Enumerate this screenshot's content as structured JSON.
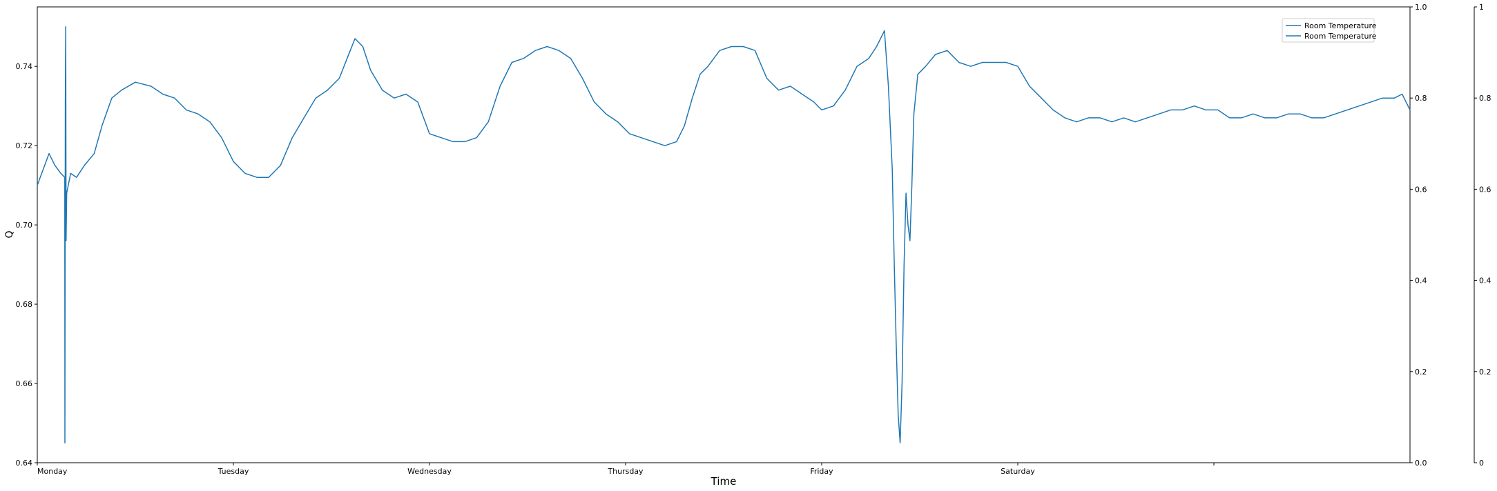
{
  "chart_data": {
    "type": "line",
    "title": "",
    "xlabel": "Time",
    "ylabel": "Q",
    "x_tick_labels": [
      "Monday",
      "Tuesday",
      "Wednesday",
      "Thursday",
      "Friday",
      "Saturday",
      ""
    ],
    "x_range_days": [
      0,
      7
    ],
    "ylim": [
      0.64,
      0.755
    ],
    "y_ticks": [
      0.64,
      0.66,
      0.68,
      0.7,
      0.72,
      0.74
    ],
    "secondary_axis_1": {
      "ylim": [
        0,
        1
      ],
      "ticks": [
        "0.0",
        "0.2",
        "0.4",
        "0.6",
        "0.8",
        "1.0"
      ]
    },
    "secondary_axis_2": {
      "ylim": [
        0,
        1
      ],
      "ticks": [
        "0",
        "0.2",
        "0.4",
        "0.6",
        "0.8",
        "1"
      ]
    },
    "legend": {
      "position": "top-right",
      "entries": [
        "Room Temperature",
        "Room Temperature"
      ]
    },
    "series": [
      {
        "name": "Room Temperature",
        "color": "#1f77b4",
        "points": [
          [
            0.0,
            0.71
          ],
          [
            0.03,
            0.714
          ],
          [
            0.06,
            0.718
          ],
          [
            0.09,
            0.715
          ],
          [
            0.12,
            0.713
          ],
          [
            0.14,
            0.712
          ],
          [
            0.141,
            0.645
          ],
          [
            0.143,
            0.731
          ],
          [
            0.145,
            0.75
          ],
          [
            0.147,
            0.696
          ],
          [
            0.15,
            0.708
          ],
          [
            0.17,
            0.713
          ],
          [
            0.2,
            0.712
          ],
          [
            0.24,
            0.715
          ],
          [
            0.29,
            0.718
          ],
          [
            0.33,
            0.725
          ],
          [
            0.38,
            0.732
          ],
          [
            0.43,
            0.734
          ],
          [
            0.5,
            0.736
          ],
          [
            0.58,
            0.735
          ],
          [
            0.64,
            0.733
          ],
          [
            0.7,
            0.732
          ],
          [
            0.76,
            0.729
          ],
          [
            0.82,
            0.728
          ],
          [
            0.88,
            0.726
          ],
          [
            0.94,
            0.722
          ],
          [
            1.0,
            0.716
          ],
          [
            1.06,
            0.713
          ],
          [
            1.12,
            0.712
          ],
          [
            1.18,
            0.712
          ],
          [
            1.24,
            0.715
          ],
          [
            1.3,
            0.722
          ],
          [
            1.36,
            0.727
          ],
          [
            1.42,
            0.732
          ],
          [
            1.48,
            0.734
          ],
          [
            1.54,
            0.737
          ],
          [
            1.58,
            0.742
          ],
          [
            1.62,
            0.747
          ],
          [
            1.66,
            0.745
          ],
          [
            1.7,
            0.739
          ],
          [
            1.76,
            0.734
          ],
          [
            1.82,
            0.732
          ],
          [
            1.88,
            0.733
          ],
          [
            1.94,
            0.731
          ],
          [
            2.0,
            0.723
          ],
          [
            2.06,
            0.722
          ],
          [
            2.12,
            0.721
          ],
          [
            2.18,
            0.721
          ],
          [
            2.24,
            0.722
          ],
          [
            2.3,
            0.726
          ],
          [
            2.36,
            0.735
          ],
          [
            2.42,
            0.741
          ],
          [
            2.48,
            0.742
          ],
          [
            2.54,
            0.744
          ],
          [
            2.6,
            0.745
          ],
          [
            2.66,
            0.744
          ],
          [
            2.72,
            0.742
          ],
          [
            2.78,
            0.737
          ],
          [
            2.84,
            0.731
          ],
          [
            2.9,
            0.728
          ],
          [
            2.96,
            0.726
          ],
          [
            3.02,
            0.723
          ],
          [
            3.08,
            0.722
          ],
          [
            3.14,
            0.721
          ],
          [
            3.2,
            0.72
          ],
          [
            3.26,
            0.721
          ],
          [
            3.3,
            0.725
          ],
          [
            3.34,
            0.732
          ],
          [
            3.38,
            0.738
          ],
          [
            3.42,
            0.74
          ],
          [
            3.48,
            0.744
          ],
          [
            3.54,
            0.745
          ],
          [
            3.6,
            0.745
          ],
          [
            3.66,
            0.744
          ],
          [
            3.72,
            0.737
          ],
          [
            3.78,
            0.734
          ],
          [
            3.84,
            0.735
          ],
          [
            3.9,
            0.733
          ],
          [
            3.96,
            0.731
          ],
          [
            4.0,
            0.729
          ],
          [
            4.06,
            0.73
          ],
          [
            4.12,
            0.734
          ],
          [
            4.18,
            0.74
          ],
          [
            4.24,
            0.742
          ],
          [
            4.28,
            0.745
          ],
          [
            4.32,
            0.749
          ],
          [
            4.34,
            0.735
          ],
          [
            4.36,
            0.714
          ],
          [
            4.37,
            0.69
          ],
          [
            4.38,
            0.67
          ],
          [
            4.39,
            0.652
          ],
          [
            4.4,
            0.645
          ],
          [
            4.41,
            0.66
          ],
          [
            4.42,
            0.69
          ],
          [
            4.43,
            0.708
          ],
          [
            4.44,
            0.7
          ],
          [
            4.45,
            0.696
          ],
          [
            4.46,
            0.71
          ],
          [
            4.47,
            0.728
          ],
          [
            4.49,
            0.738
          ],
          [
            4.53,
            0.74
          ],
          [
            4.58,
            0.743
          ],
          [
            4.64,
            0.744
          ],
          [
            4.7,
            0.741
          ],
          [
            4.76,
            0.74
          ],
          [
            4.82,
            0.741
          ],
          [
            4.88,
            0.741
          ],
          [
            4.94,
            0.741
          ],
          [
            5.0,
            0.74
          ],
          [
            5.06,
            0.735
          ],
          [
            5.12,
            0.732
          ],
          [
            5.18,
            0.729
          ],
          [
            5.24,
            0.727
          ],
          [
            5.3,
            0.726
          ],
          [
            5.36,
            0.727
          ],
          [
            5.42,
            0.727
          ],
          [
            5.48,
            0.726
          ],
          [
            5.54,
            0.727
          ],
          [
            5.6,
            0.726
          ],
          [
            5.66,
            0.727
          ],
          [
            5.72,
            0.728
          ],
          [
            5.78,
            0.729
          ],
          [
            5.84,
            0.729
          ],
          [
            5.9,
            0.73
          ],
          [
            5.96,
            0.729
          ],
          [
            6.02,
            0.729
          ],
          [
            6.08,
            0.727
          ],
          [
            6.14,
            0.727
          ],
          [
            6.2,
            0.728
          ],
          [
            6.26,
            0.727
          ],
          [
            6.32,
            0.727
          ],
          [
            6.38,
            0.728
          ],
          [
            6.44,
            0.728
          ],
          [
            6.5,
            0.727
          ],
          [
            6.56,
            0.727
          ],
          [
            6.62,
            0.728
          ],
          [
            6.68,
            0.729
          ],
          [
            6.74,
            0.73
          ],
          [
            6.8,
            0.731
          ],
          [
            6.86,
            0.732
          ],
          [
            6.92,
            0.732
          ],
          [
            6.96,
            0.733
          ],
          [
            7.0,
            0.729
          ]
        ]
      }
    ]
  }
}
